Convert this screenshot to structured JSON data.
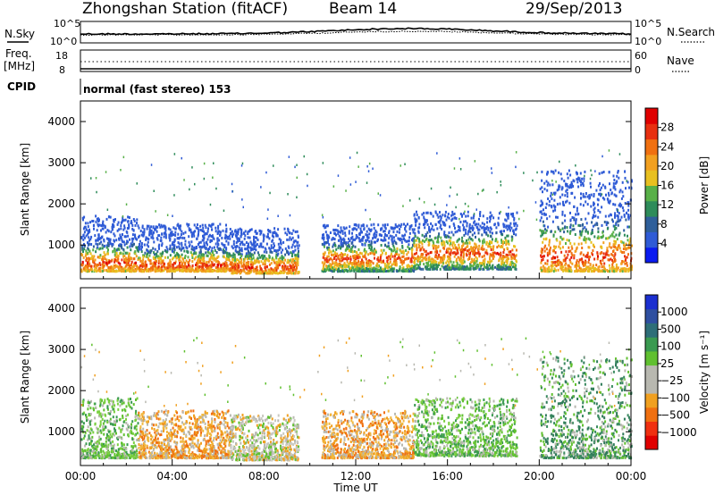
{
  "header": {
    "title": "Zhongshan Station (fitACF)",
    "beam": "Beam 14",
    "date": "29/Sep/2013"
  },
  "control_panel": {
    "nsky_label": "N.Sky",
    "nsky_ticks": [
      "10^5",
      "10^0"
    ],
    "nsearch_label": "N.Search",
    "nsearch_ticks": [
      "10^5",
      "10^0"
    ],
    "freq_label": "Freq.",
    "freq_unit": "[MHz]",
    "freq_ticks": [
      "18",
      "8"
    ],
    "nave_label": "Nave",
    "nave_ticks": [
      "60",
      "0"
    ],
    "cpid_label": "CPID",
    "cpid_text": "normal (fast stereo) 153"
  },
  "chart_data": [
    {
      "type": "heatmap",
      "name": "power",
      "ylabel": "Slant Range [km]",
      "xlabel": "",
      "y_ticks": [
        "4000",
        "3000",
        "2000",
        "1000"
      ],
      "ylim": [
        180,
        4500
      ],
      "x_ticks": [
        "00:00",
        "04:00",
        "08:00",
        "12:00",
        "16:00",
        "20:00",
        "00:00"
      ],
      "xlim": [
        0,
        24
      ],
      "colorbar": {
        "label": "Power [dB]",
        "ticks": [
          "28",
          "24",
          "20",
          "16",
          "12",
          "8",
          "4"
        ],
        "colors": [
          "#0a1bf0",
          "#2f5bd6",
          "#2f5f9a",
          "#2e8c5a",
          "#58b048",
          "#e8c020",
          "#f2a020",
          "#f07010",
          "#e83010",
          "#e00000"
        ]
      },
      "bands": [
        {
          "t0": 0.0,
          "t1": 2.5,
          "r0": 350,
          "r1": 1700,
          "core": 550
        },
        {
          "t0": 2.5,
          "t1": 6.5,
          "r0": 350,
          "r1": 1500,
          "core": 500
        },
        {
          "t0": 6.5,
          "t1": 9.5,
          "r0": 300,
          "r1": 1400,
          "core": 450
        },
        {
          "t0": 10.5,
          "t1": 14.5,
          "r0": 350,
          "r1": 1500,
          "core": 650
        },
        {
          "t0": 14.5,
          "t1": 19.0,
          "r0": 400,
          "r1": 1800,
          "core": 800
        },
        {
          "t0": 20.0,
          "t1": 24.0,
          "r0": 350,
          "r1": 2800,
          "core": 700
        }
      ]
    },
    {
      "type": "heatmap",
      "name": "velocity",
      "ylabel": "Slant Range [km]",
      "xlabel": "Time UT",
      "y_ticks": [
        "4000",
        "3000",
        "2000",
        "1000"
      ],
      "ylim": [
        180,
        4500
      ],
      "x_ticks": [
        "00:00",
        "04:00",
        "08:00",
        "12:00",
        "16:00",
        "20:00",
        "00:00"
      ],
      "xlim": [
        0,
        24
      ],
      "colorbar": {
        "label": "Velocity [m s⁻¹]",
        "ticks": [
          "1000",
          "500",
          "100",
          "25",
          "−25",
          "−100",
          "−500",
          "−1000"
        ],
        "colors": [
          "#e00000",
          "#f03010",
          "#f07010",
          "#f0a020",
          "#b8b8b0",
          "#b8b8b0",
          "#60c030",
          "#3a9a50",
          "#2e6e78",
          "#2f4fa0",
          "#1b2fd0"
        ]
      },
      "bands": [
        {
          "t0": 0.0,
          "t1": 2.5,
          "r0": 350,
          "r1": 1800,
          "v": "green"
        },
        {
          "t0": 2.5,
          "t1": 6.5,
          "r0": 350,
          "r1": 1500,
          "v": "orange"
        },
        {
          "t0": 6.5,
          "t1": 9.5,
          "r0": 300,
          "r1": 1400,
          "v": "grey"
        },
        {
          "t0": 10.5,
          "t1": 14.5,
          "r0": 350,
          "r1": 1500,
          "v": "orange"
        },
        {
          "t0": 14.5,
          "t1": 19.0,
          "r0": 400,
          "r1": 1800,
          "v": "green"
        },
        {
          "t0": 20.0,
          "t1": 24.0,
          "r0": 350,
          "r1": 2800,
          "v": "darkgreen"
        }
      ]
    }
  ]
}
